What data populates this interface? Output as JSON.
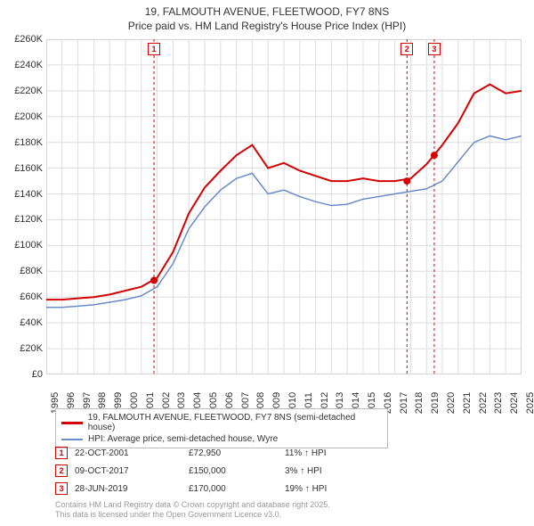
{
  "title_line1": "19, FALMOUTH AVENUE, FLEETWOOD, FY7 8NS",
  "title_line2": "Price paid vs. HM Land Registry's House Price Index (HPI)",
  "chart": {
    "type": "line",
    "background_color": "#ffffff",
    "border_color": "#cccccc",
    "grid_color": "#dddddd",
    "ylim": [
      0,
      260000
    ],
    "ytick_step": 20000,
    "y_ticks": [
      "£0",
      "£20K",
      "£40K",
      "£60K",
      "£80K",
      "£100K",
      "£120K",
      "£140K",
      "£160K",
      "£180K",
      "£200K",
      "£220K",
      "£240K",
      "£260K"
    ],
    "x_years": [
      "1995",
      "1996",
      "1997",
      "1998",
      "1999",
      "2000",
      "2001",
      "2002",
      "2003",
      "2004",
      "2005",
      "2006",
      "2007",
      "2008",
      "2009",
      "2010",
      "2011",
      "2012",
      "2013",
      "2014",
      "2015",
      "2016",
      "2017",
      "2018",
      "2019",
      "2020",
      "2021",
      "2022",
      "2023",
      "2024",
      "2025"
    ],
    "series": [
      {
        "name": "price_paid",
        "label": "19, FALMOUTH AVENUE, FLEETWOOD, FY7 8NS (semi-detached house)",
        "color": "#d40000",
        "line_width": 2,
        "values": [
          58000,
          58000,
          59000,
          60000,
          62000,
          65000,
          68000,
          75000,
          95000,
          125000,
          145000,
          158000,
          170000,
          178000,
          160000,
          164000,
          158000,
          154000,
          150000,
          150000,
          152000,
          150000,
          150000,
          152000,
          163000,
          178000,
          195000,
          218000,
          225000,
          218000,
          220000
        ]
      },
      {
        "name": "hpi",
        "label": "HPI: Average price, semi-detached house, Wyre",
        "color": "#6a8bc9",
        "line_width": 1.5,
        "values": [
          52000,
          52000,
          53000,
          54000,
          56000,
          58000,
          61000,
          68000,
          86000,
          113000,
          130000,
          143000,
          152000,
          156000,
          140000,
          143000,
          138000,
          134000,
          131000,
          132000,
          136000,
          138000,
          140000,
          142000,
          144000,
          150000,
          165000,
          180000,
          185000,
          182000,
          185000
        ]
      }
    ],
    "events": [
      {
        "n": "1",
        "year": 2001.8,
        "date": "22-OCT-2001",
        "price": "£72,950",
        "delta": "11% ↑ HPI",
        "border_color": "#d40000",
        "text_color": "#d40000",
        "point_value": 72950
      },
      {
        "n": "2",
        "year": 2017.77,
        "date": "09-OCT-2017",
        "price": "£150,000",
        "delta": "3% ↑ HPI",
        "border_color": "#d40000",
        "text_color": "#d40000",
        "point_value": 150000
      },
      {
        "n": "3",
        "year": 2019.49,
        "date": "28-JUN-2019",
        "price": "£170,000",
        "delta": "19% ↑ HPI",
        "border_color": "#d40000",
        "text_color": "#d40000",
        "point_value": 170000
      }
    ],
    "event_line_color": "#d40000",
    "event_point_color": "#d40000",
    "label_fontsize": 11,
    "title_fontsize": 12
  },
  "legend": {
    "border_color": "#bbbbbb"
  },
  "attribution_line1": "Contains HM Land Registry data © Crown copyright and database right 2025.",
  "attribution_line2": "This data is licensed under the Open Government Licence v3.0."
}
